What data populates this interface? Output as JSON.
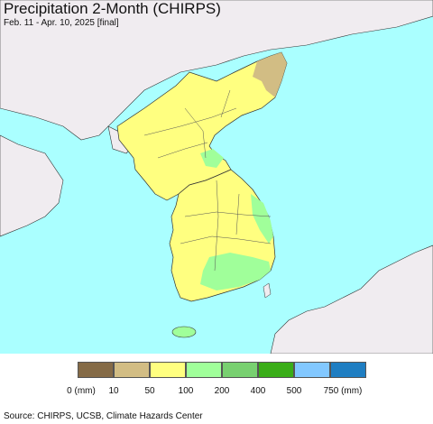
{
  "header": {
    "title": "Precipitation 2-Month (CHIRPS)",
    "subtitle": "Feb. 11 - Apr. 10, 2025 [final]"
  },
  "map": {
    "ocean_color": "#aaffff",
    "outside_land_color": "#f0ecf0",
    "border_color": "#333333"
  },
  "legend": {
    "colors": [
      "#856b47",
      "#d2bd84",
      "#ffff80",
      "#a0ff9a",
      "#78d070",
      "#3aad18",
      "#82c8ff",
      "#1f7ec2"
    ],
    "labels": [
      "0 (mm)",
      "10",
      "50",
      "100",
      "200",
      "400",
      "500",
      "750 (mm)"
    ]
  },
  "footer": {
    "source": "Source: CHIRPS, UCSB, Climate Hazards Center"
  }
}
